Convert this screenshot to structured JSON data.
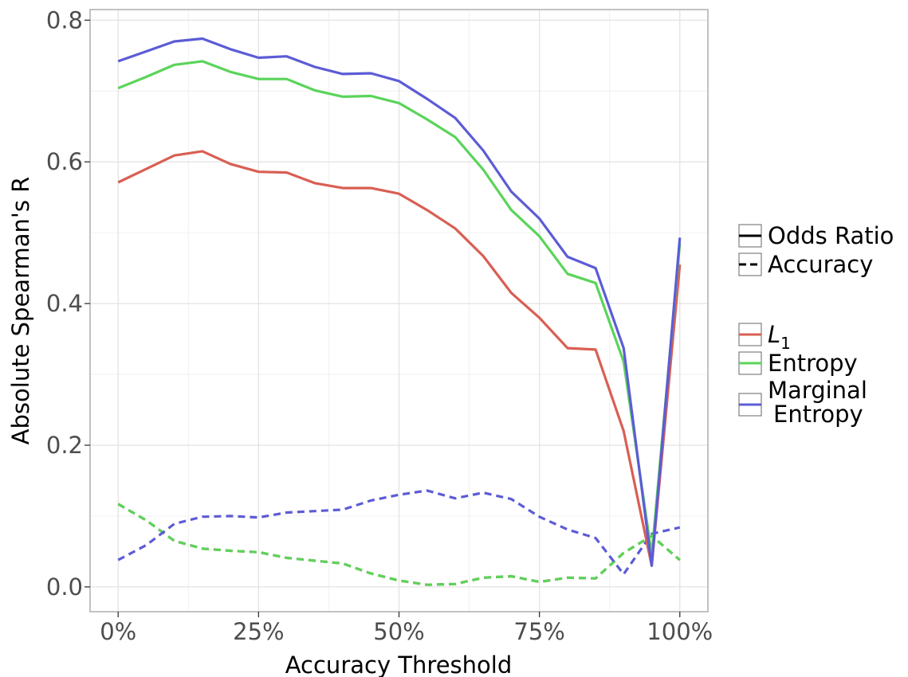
{
  "chart_data": {
    "type": "line",
    "xlabel": "Accuracy Threshold",
    "ylabel": "Absolute Spearman's R",
    "x": [
      0,
      5,
      10,
      15,
      20,
      25,
      30,
      35,
      40,
      45,
      50,
      55,
      60,
      65,
      70,
      75,
      80,
      85,
      90,
      95,
      100
    ],
    "x_ticks": [
      "0%",
      "25%",
      "50%",
      "75%",
      "100%"
    ],
    "y_ticks": [
      "0.0",
      "0.2",
      "0.4",
      "0.6",
      "0.8"
    ],
    "xlim": [
      -5,
      105
    ],
    "ylim": [
      -0.035,
      0.815
    ],
    "grid": true,
    "legend_position": "right",
    "linetype_legend": [
      "Odds Ratio",
      "Accuracy"
    ],
    "color_legend": {
      "l1_main": "L",
      "l1_sub": "1",
      "entropy": "Entropy",
      "marginal_line1": "Marginal",
      "marginal_line2": "Entropy"
    },
    "colors": {
      "l1": "#d95f53",
      "entropy": "#5ad45a",
      "marginal": "#5c5cd6"
    },
    "series": [
      {
        "metric": "l1",
        "linetype": "solid",
        "values": [
          0.571,
          0.59,
          0.609,
          0.615,
          0.597,
          0.586,
          0.585,
          0.57,
          0.563,
          0.563,
          0.555,
          0.532,
          0.506,
          0.467,
          0.415,
          0.38,
          0.337,
          0.335,
          0.22,
          0.03,
          0.455
        ]
      },
      {
        "metric": "entropy",
        "linetype": "solid",
        "values": [
          0.704,
          0.72,
          0.737,
          0.742,
          0.727,
          0.717,
          0.717,
          0.701,
          0.692,
          0.693,
          0.683,
          0.66,
          0.635,
          0.589,
          0.532,
          0.495,
          0.442,
          0.429,
          0.318,
          0.045,
          0.485
        ]
      },
      {
        "metric": "marginal",
        "linetype": "solid",
        "values": [
          0.742,
          0.756,
          0.77,
          0.774,
          0.759,
          0.747,
          0.749,
          0.734,
          0.724,
          0.725,
          0.714,
          0.689,
          0.662,
          0.616,
          0.558,
          0.52,
          0.466,
          0.45,
          0.337,
          0.03,
          0.493
        ]
      },
      {
        "metric": "l1",
        "linetype": "dashed",
        "values": [
          0.117,
          0.094,
          0.065,
          0.054,
          0.051,
          0.049,
          0.041,
          0.037,
          0.033,
          0.019,
          0.009,
          0.003,
          0.004,
          0.013,
          0.015,
          0.007,
          0.013,
          0.012,
          0.048,
          0.072,
          0.038
        ]
      },
      {
        "metric": "entropy",
        "linetype": "dashed",
        "values": [
          0.117,
          0.094,
          0.065,
          0.054,
          0.051,
          0.049,
          0.041,
          0.037,
          0.033,
          0.019,
          0.009,
          0.003,
          0.004,
          0.013,
          0.015,
          0.007,
          0.013,
          0.012,
          0.048,
          0.072,
          0.038
        ]
      },
      {
        "metric": "marginal",
        "linetype": "dashed",
        "values": [
          0.038,
          0.059,
          0.089,
          0.099,
          0.1,
          0.098,
          0.105,
          0.107,
          0.109,
          0.122,
          0.13,
          0.136,
          0.125,
          0.133,
          0.124,
          0.099,
          0.081,
          0.069,
          0.018,
          0.075,
          0.084
        ]
      }
    ]
  }
}
